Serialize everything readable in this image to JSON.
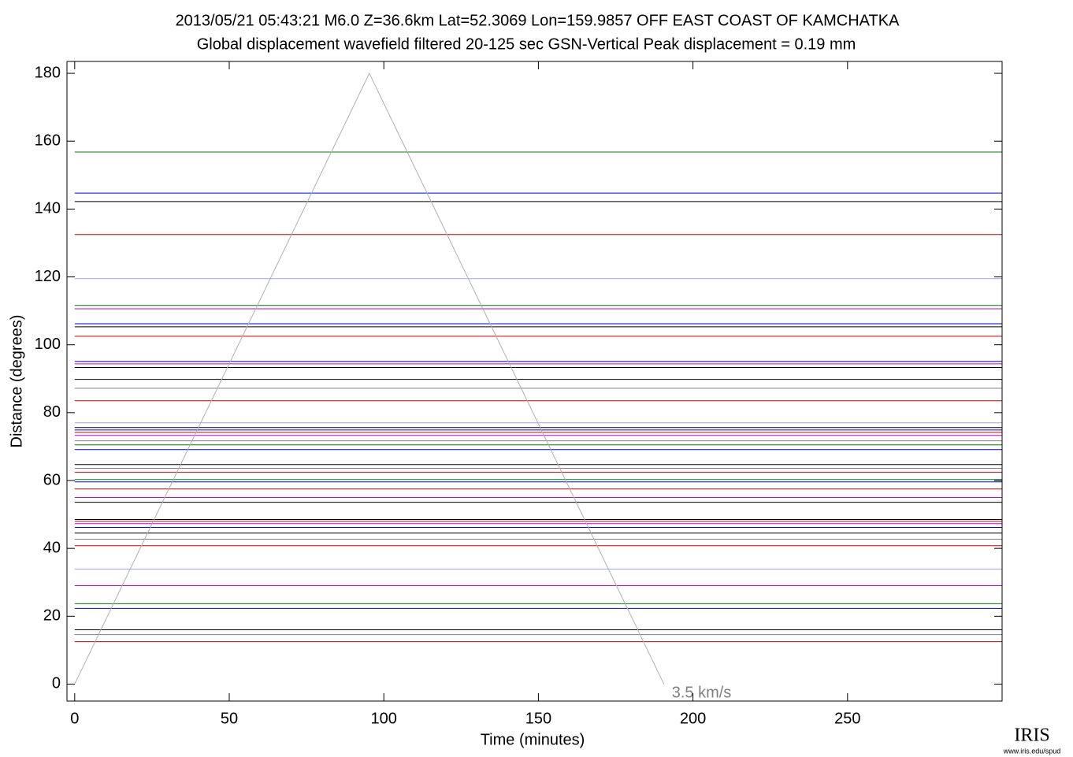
{
  "chart_data": {
    "type": "record-section",
    "title": "2013/05/21  05:43:21  M6.0  Z=36.6km  Lat=52.3069 Lon=159.9857  OFF EAST COAST OF KAMCHATKA",
    "subtitle": "Global displacement wavefield     filtered 20-125 sec    GSN-Vertical    Peak displacement = 0.19 mm",
    "x_label": "Time (minutes)",
    "y_label": "Distance (degrees)",
    "xlim": [
      -2.5,
      300
    ],
    "ylim": [
      -5,
      183.5
    ],
    "xticks": [
      0,
      50,
      100,
      150,
      200,
      250
    ],
    "yticks": [
      0,
      20,
      40,
      60,
      80,
      100,
      120,
      140,
      160,
      180
    ],
    "traces": [
      {
        "distance": 156.8,
        "color": "#008000"
      },
      {
        "distance": 144.7,
        "color": "#0000ff"
      },
      {
        "distance": 142.2,
        "color": "#000000"
      },
      {
        "distance": 132.5,
        "color": "#cc0000"
      },
      {
        "distance": 119.5,
        "color": "#a0a0ff"
      },
      {
        "distance": 111.6,
        "color": "#008000"
      },
      {
        "distance": 110.6,
        "color": "#cc00cc"
      },
      {
        "distance": 106.2,
        "color": "#0000ff"
      },
      {
        "distance": 105.3,
        "color": "#000000"
      },
      {
        "distance": 102.5,
        "color": "#cc0000"
      },
      {
        "distance": 95.1,
        "color": "#0000ff"
      },
      {
        "distance": 94.4,
        "color": "#cc00cc"
      },
      {
        "distance": 93.3,
        "color": "#000000"
      },
      {
        "distance": 89.8,
        "color": "#000000"
      },
      {
        "distance": 87.2,
        "color": "#808080"
      },
      {
        "distance": 83.5,
        "color": "#cc0000"
      },
      {
        "distance": 77,
        "color": "#a0a0ff"
      },
      {
        "distance": 75.6,
        "color": "#000000"
      },
      {
        "distance": 74.9,
        "color": "#0000ff"
      },
      {
        "distance": 74.2,
        "color": "#cc0000"
      },
      {
        "distance": 73.3,
        "color": "#cc00cc"
      },
      {
        "distance": 71.7,
        "color": "#808080"
      },
      {
        "distance": 70.5,
        "color": "#008000"
      },
      {
        "distance": 69.1,
        "color": "#0000ff"
      },
      {
        "distance": 64.7,
        "color": "#000000"
      },
      {
        "distance": 63.6,
        "color": "#808080"
      },
      {
        "distance": 62.4,
        "color": "#cc0000"
      },
      {
        "distance": 60.3,
        "color": "#008000"
      },
      {
        "distance": 59.6,
        "color": "#0000ff"
      },
      {
        "distance": 57.5,
        "color": "#cc0000"
      },
      {
        "distance": 55,
        "color": "#cc00cc"
      },
      {
        "distance": 53.6,
        "color": "#000000"
      },
      {
        "distance": 48.5,
        "color": "#000000"
      },
      {
        "distance": 48,
        "color": "#cc0000"
      },
      {
        "distance": 47.3,
        "color": "#cc00cc"
      },
      {
        "distance": 46.2,
        "color": "#0000ff"
      },
      {
        "distance": 44.5,
        "color": "#000000"
      },
      {
        "distance": 42.7,
        "color": "#808080"
      },
      {
        "distance": 40.8,
        "color": "#cc0000"
      },
      {
        "distance": 33.9,
        "color": "#a0a0ff"
      },
      {
        "distance": 29,
        "color": "#cc00cc"
      },
      {
        "distance": 23.7,
        "color": "#008000"
      },
      {
        "distance": 22.3,
        "color": "#0000ff"
      },
      {
        "distance": 16,
        "color": "#000000"
      },
      {
        "distance": 14.6,
        "color": "#808080"
      },
      {
        "distance": 12.5,
        "color": "#cc0000"
      }
    ],
    "velocity_line": {
      "label": "3.5 km/s",
      "color": "#b0b0b0",
      "x": [
        0,
        95.3,
        190.6
      ],
      "y": [
        0,
        180,
        0
      ]
    },
    "logo": {
      "name": "IRIS",
      "url": "www.iris.edu/spud"
    }
  }
}
